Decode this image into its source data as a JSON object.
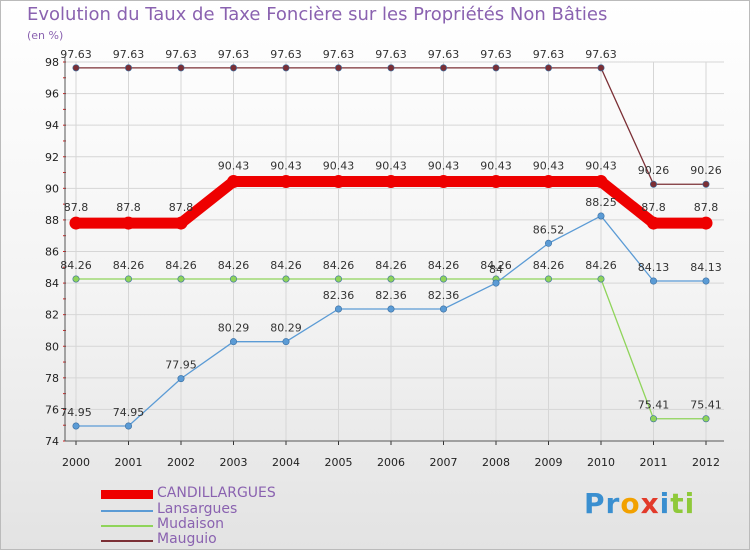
{
  "chart_data": {
    "type": "line",
    "title": "Evolution du Taux de Taxe Foncière sur les Propriétés Non Bâties",
    "ylabel": "(en %)",
    "xlabel": "",
    "ylim": [
      74,
      98
    ],
    "ytick_step": 2,
    "grid": true,
    "categories": [
      "2000",
      "2001",
      "2002",
      "2003",
      "2004",
      "2005",
      "2006",
      "2007",
      "2008",
      "2009",
      "2010",
      "2011",
      "2012"
    ],
    "series": [
      {
        "name": "CANDILLARGUES",
        "color": "#ee0000",
        "thick": true,
        "values": [
          87.8,
          87.8,
          87.8,
          90.43,
          90.43,
          90.43,
          90.43,
          90.43,
          90.43,
          90.43,
          90.43,
          87.8,
          87.8
        ]
      },
      {
        "name": "Lansargues",
        "color": "#5b9bd5",
        "thick": false,
        "values": [
          74.95,
          74.95,
          77.95,
          80.29,
          80.29,
          82.36,
          82.36,
          82.36,
          84,
          86.52,
          88.25,
          84.13,
          84.13
        ]
      },
      {
        "name": "Mudaison",
        "color": "#8fd45a",
        "thick": false,
        "values": [
          84.26,
          84.26,
          84.26,
          84.26,
          84.26,
          84.26,
          84.26,
          84.26,
          84.26,
          84.26,
          84.26,
          75.41,
          75.41
        ]
      },
      {
        "name": "Mauguio",
        "color": "#7b2f35",
        "thick": false,
        "values": [
          97.63,
          97.63,
          97.63,
          97.63,
          97.63,
          97.63,
          97.63,
          97.63,
          97.63,
          97.63,
          97.63,
          90.26,
          90.26
        ]
      }
    ]
  },
  "legend": [
    {
      "label": "CANDILLARGUES",
      "color": "#ee0000"
    },
    {
      "label": "Lansargues",
      "color": "#5b9bd5"
    },
    {
      "label": "Mudaison",
      "color": "#8fd45a"
    },
    {
      "label": "Mauguio",
      "color": "#7b2f35"
    }
  ],
  "logo": {
    "text": "Proxiti",
    "letters": [
      {
        "ch": "P",
        "color": "#3a8fd0"
      },
      {
        "ch": "r",
        "color": "#3a8fd0"
      },
      {
        "ch": "o",
        "color": "#f2a100"
      },
      {
        "ch": "x",
        "color": "#e23a2a"
      },
      {
        "ch": "i",
        "color": "#3a8fd0"
      },
      {
        "ch": "t",
        "color": "#8fc93a"
      },
      {
        "ch": "i",
        "color": "#8fc93a"
      }
    ]
  }
}
